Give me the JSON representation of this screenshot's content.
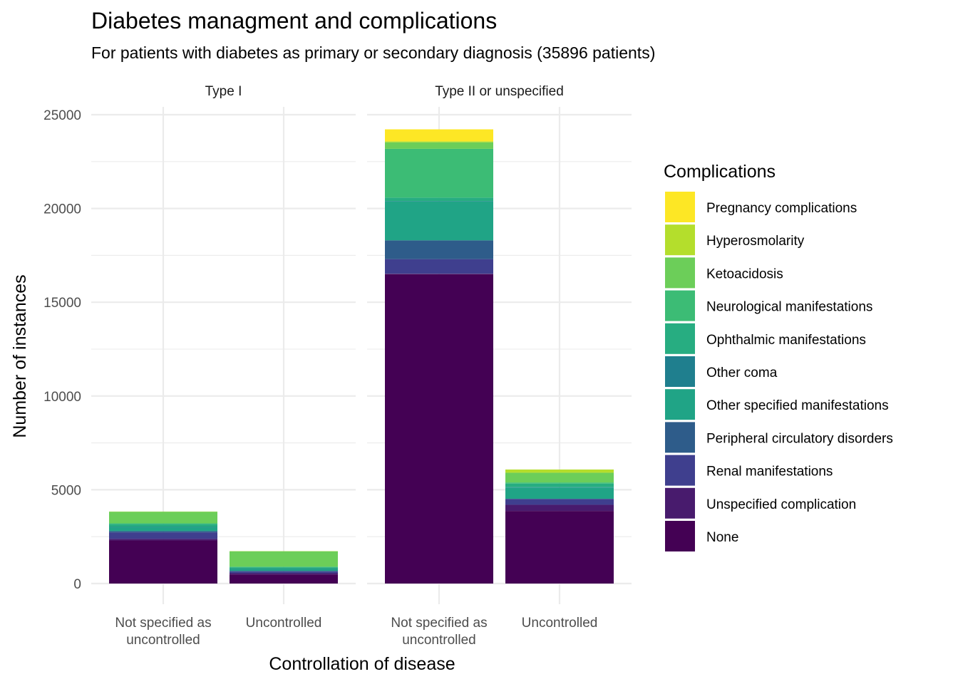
{
  "chart_data": {
    "type": "bar",
    "stacked": true,
    "title": "Diabetes managment and complications",
    "subtitle": "For patients with diabetes as primary or secondary diagnosis (35896 patients)",
    "xlabel": "Controllation of disease",
    "ylabel": "Number of instances",
    "ylim": [
      0,
      25000
    ],
    "y_ticks": [
      "0",
      "5000",
      "10000",
      "15000",
      "20000",
      "25000"
    ],
    "grid": true,
    "legend_position": "right",
    "legend_title": "Complications",
    "panels": [
      {
        "label": "Type I",
        "categories": [
          {
            "id": "nsu",
            "label_lines": [
              "Not specified as",
              "uncontrolled"
            ]
          },
          {
            "id": "unc",
            "label_lines": [
              "Uncontrolled"
            ]
          }
        ]
      },
      {
        "label": "Type II or unspecified",
        "categories": [
          {
            "id": "nsu",
            "label_lines": [
              "Not specified as",
              "uncontrolled"
            ]
          },
          {
            "id": "unc",
            "label_lines": [
              "Uncontrolled"
            ]
          }
        ]
      }
    ],
    "series": [
      {
        "name": "None",
        "color": "#440154",
        "values": [
          [
            2300,
            480
          ],
          [
            16500,
            3870
          ]
        ]
      },
      {
        "name": "Unspecified complication",
        "color": "#481B6D",
        "values": [
          [
            80,
            70
          ],
          [
            20,
            330
          ]
        ]
      },
      {
        "name": "Renal manifestations",
        "color": "#3F3F8E",
        "values": [
          [
            350,
            90
          ],
          [
            780,
            310
          ]
        ]
      },
      {
        "name": "Peripheral circulatory disorders",
        "color": "#2E5C8A",
        "values": [
          [
            70,
            40
          ],
          [
            1000,
            10
          ]
        ]
      },
      {
        "name": "Other specified manifestations",
        "color": "#20A486",
        "values": [
          [
            200,
            80
          ],
          [
            2080,
            600
          ]
        ]
      },
      {
        "name": "Other coma",
        "color": "#1F7F8E",
        "values": [
          [
            20,
            20
          ],
          [
            20,
            20
          ]
        ]
      },
      {
        "name": "Ophthalmic manifestations",
        "color": "#27AD81",
        "values": [
          [
            160,
            90
          ],
          [
            180,
            190
          ]
        ]
      },
      {
        "name": "Neurological manifestations",
        "color": "#3CBC75",
        "values": [
          [
            30,
            30
          ],
          [
            2600,
            60
          ]
        ]
      },
      {
        "name": "Ketoacidosis",
        "color": "#6CCE59",
        "values": [
          [
            620,
            820
          ],
          [
            350,
            520
          ]
        ]
      },
      {
        "name": "Hyperosmolarity",
        "color": "#B4DE2C",
        "values": [
          [
            10,
            10
          ],
          [
            50,
            170
          ]
        ]
      },
      {
        "name": "Pregnancy complications",
        "color": "#FDE725",
        "values": [
          [
            0,
            0
          ],
          [
            640,
            0
          ]
        ]
      }
    ],
    "legend_order": [
      "Pregnancy complications",
      "Hyperosmolarity",
      "Ketoacidosis",
      "Neurological manifestations",
      "Ophthalmic manifestations",
      "Other coma",
      "Other specified manifestations",
      "Peripheral circulatory disorders",
      "Renal manifestations",
      "Unspecified complication",
      "None"
    ]
  }
}
